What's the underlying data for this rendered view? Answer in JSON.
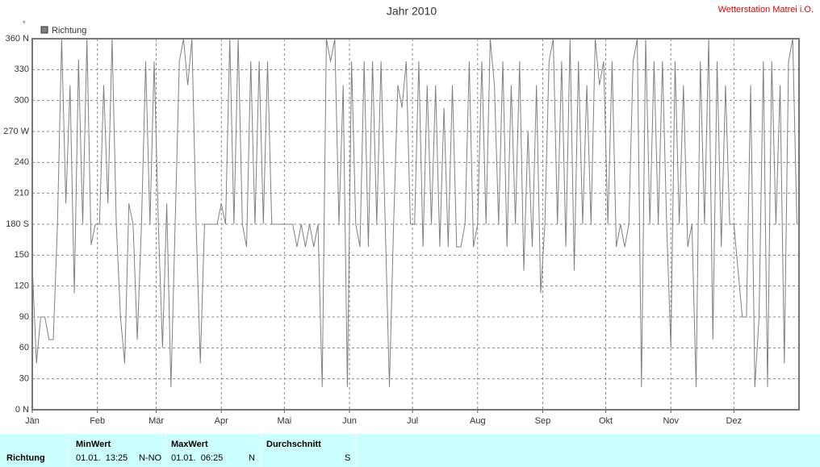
{
  "chart_data": {
    "type": "line",
    "title": "Jahr 2010",
    "source": "Wetterstation Matrei i.O.",
    "y_label": "°",
    "legend_position": "top-left",
    "grid": true,
    "xlim": [
      0,
      365
    ],
    "xticks": [
      {
        "value": 0,
        "label": "Jän"
      },
      {
        "value": 31,
        "label": "Feb"
      },
      {
        "value": 59,
        "label": "Mär"
      },
      {
        "value": 90,
        "label": "Apr"
      },
      {
        "value": 120,
        "label": "Mai"
      },
      {
        "value": 151,
        "label": "Jun"
      },
      {
        "value": 181,
        "label": "Jul"
      },
      {
        "value": 212,
        "label": "Aug"
      },
      {
        "value": 243,
        "label": "Sep"
      },
      {
        "value": 273,
        "label": "Okt"
      },
      {
        "value": 304,
        "label": "Nov"
      },
      {
        "value": 334,
        "label": "Dez"
      }
    ],
    "ylim": [
      0,
      360
    ],
    "yticks": [
      {
        "value": 0,
        "label": "0 N"
      },
      30,
      60,
      90,
      120,
      150,
      {
        "value": 180,
        "label": "180 S"
      },
      210,
      240,
      {
        "value": 270,
        "label": "270 W"
      },
      300,
      330,
      {
        "value": 360,
        "label": "360 N"
      }
    ],
    "x": [
      0,
      2,
      4,
      6,
      8,
      10,
      12,
      14,
      16,
      18,
      20,
      22,
      24,
      26,
      28,
      30,
      32,
      34,
      36,
      38,
      40,
      42,
      44,
      46,
      48,
      50,
      52,
      54,
      56,
      58,
      60,
      62,
      64,
      66,
      68,
      70,
      72,
      74,
      76,
      78,
      80,
      82,
      84,
      86,
      88,
      90,
      92,
      94,
      96,
      98,
      100,
      102,
      104,
      106,
      108,
      110,
      112,
      114,
      116,
      118,
      120,
      122,
      124,
      126,
      128,
      130,
      132,
      134,
      136,
      138,
      140,
      142,
      144,
      146,
      148,
      150,
      152,
      154,
      156,
      158,
      160,
      162,
      164,
      166,
      168,
      170,
      172,
      174,
      176,
      178,
      180,
      182,
      184,
      186,
      188,
      190,
      192,
      194,
      196,
      198,
      200,
      202,
      204,
      206,
      208,
      210,
      212,
      214,
      216,
      218,
      220,
      222,
      224,
      226,
      228,
      230,
      232,
      234,
      236,
      238,
      240,
      242,
      244,
      246,
      248,
      250,
      252,
      254,
      256,
      258,
      260,
      262,
      264,
      266,
      268,
      270,
      272,
      274,
      276,
      278,
      280,
      282,
      284,
      286,
      288,
      290,
      292,
      294,
      296,
      298,
      300,
      302,
      304,
      306,
      308,
      310,
      312,
      314,
      316,
      318,
      320,
      322,
      324,
      326,
      328,
      330,
      332,
      334,
      336,
      338,
      340,
      342,
      344,
      346,
      348,
      350,
      352,
      354,
      356,
      358,
      360,
      362,
      364
    ],
    "series": [
      {
        "name": "Richtung",
        "color": "#808080",
        "values": [
          140,
          45,
          90,
          90,
          68,
          68,
          180,
          360,
          200,
          315,
          113,
          340,
          180,
          360,
          160,
          180,
          180,
          315,
          200,
          360,
          180,
          90,
          45,
          200,
          180,
          68,
          180,
          338,
          180,
          338,
          180,
          60,
          200,
          22,
          180,
          338,
          360,
          315,
          360,
          180,
          45,
          180,
          180,
          180,
          180,
          200,
          180,
          360,
          180,
          360,
          180,
          158,
          338,
          180,
          338,
          180,
          338,
          180,
          180,
          180,
          180,
          180,
          180,
          158,
          180,
          158,
          180,
          158,
          180,
          22,
          360,
          338,
          360,
          180,
          315,
          22,
          338,
          180,
          158,
          338,
          158,
          338,
          180,
          338,
          180,
          22,
          180,
          315,
          293,
          338,
          180,
          180,
          338,
          158,
          315,
          180,
          315,
          158,
          293,
          158,
          315,
          158,
          158,
          180,
          338,
          158,
          180,
          338,
          180,
          360,
          315,
          180,
          338,
          158,
          315,
          180,
          338,
          135,
          270,
          158,
          315,
          113,
          180,
          338,
          360,
          180,
          338,
          158,
          360,
          135,
          338,
          180,
          315,
          180,
          360,
          315,
          338,
          180,
          338,
          158,
          180,
          158,
          180,
          338,
          360,
          22,
          360,
          180,
          338,
          180,
          338,
          180,
          60,
          338,
          180,
          315,
          158,
          180,
          22,
          338,
          180,
          360,
          68,
          338,
          158,
          315,
          180,
          180,
          135,
          90,
          90,
          315,
          22,
          90,
          338,
          22,
          338,
          180,
          315,
          45,
          338,
          360,
          180
        ]
      }
    ]
  },
  "stats_table": {
    "row_label": "Richtung",
    "columns": [
      {
        "header": "MinWert",
        "time": "01.01.  13:25",
        "dir": "N-NO"
      },
      {
        "header": "MaxWert",
        "time": "01.01.  06:25",
        "dir": "N"
      },
      {
        "header": "Durchschnitt",
        "time": "",
        "dir": "S"
      }
    ]
  }
}
